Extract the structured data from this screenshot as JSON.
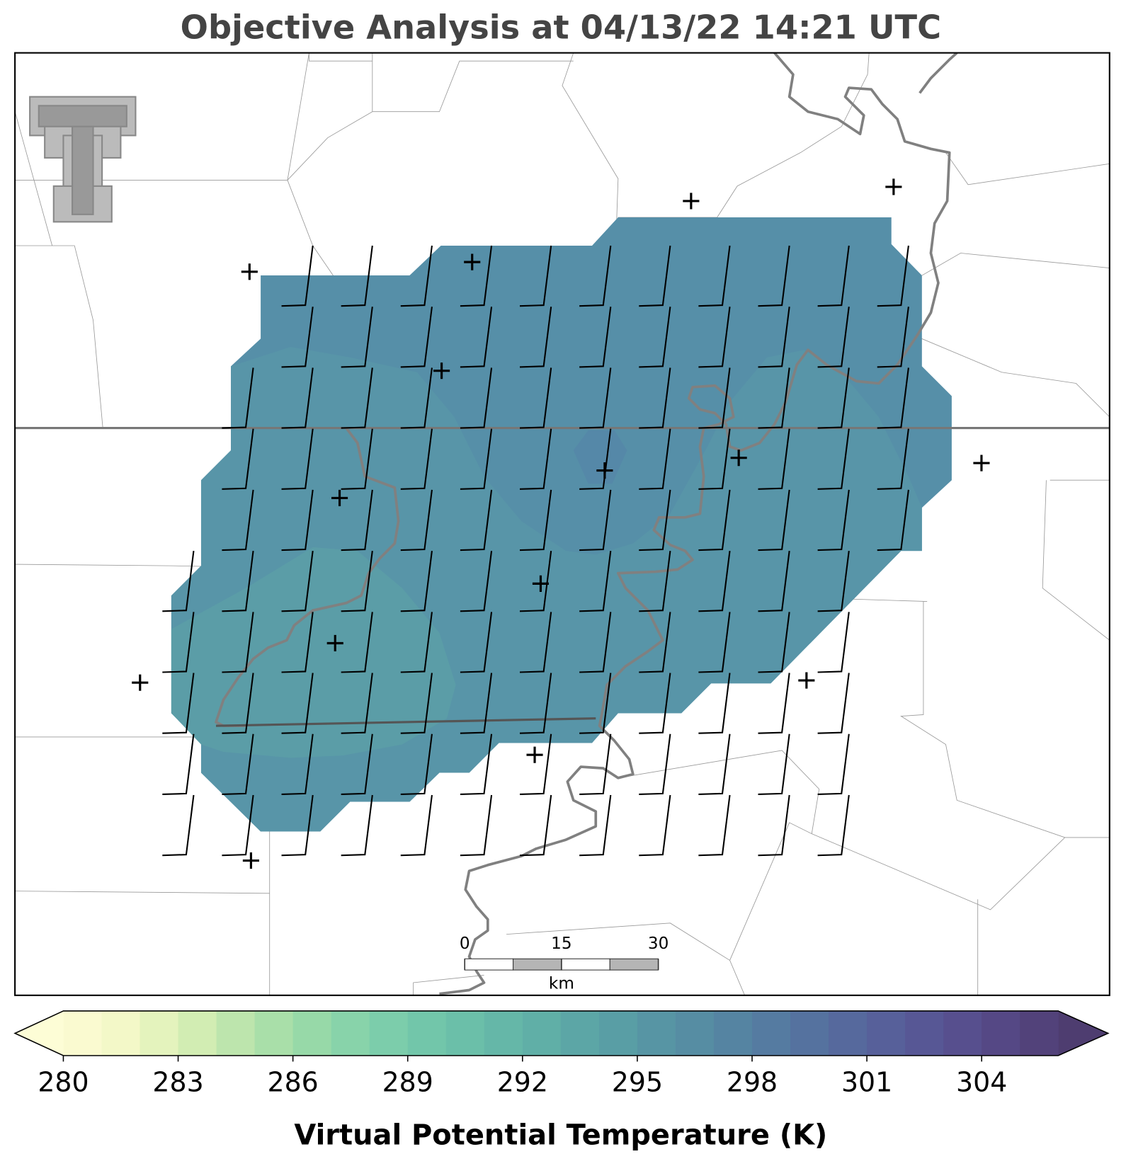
{
  "title": "Objective Analysis at 04/13/22 14:21 UTC",
  "colorbar": {
    "label": "Virtual Potential Temperature (K)",
    "range": [
      280,
      306
    ],
    "ticks": [
      280,
      283,
      286,
      289,
      292,
      295,
      298,
      301,
      304
    ],
    "colors": [
      "#fafad0",
      "#f3f8c8",
      "#e4f3bd",
      "#d2edb3",
      "#bde5ad",
      "#a9dfa9",
      "#97d9a8",
      "#88d3aa",
      "#7ccdab",
      "#72c6aa",
      "#6bbfa9",
      "#65b7a8",
      "#60afa7",
      "#5ca6a6",
      "#599ea5",
      "#5795a4",
      "#568da3",
      "#5584a2",
      "#557ba1",
      "#55729f",
      "#56699d",
      "#57609a",
      "#575795",
      "#574f8e",
      "#554885",
      "#52427a"
    ],
    "under_color": "#fdfdd6",
    "over_color": "#4e3d70"
  },
  "scale_bar": {
    "ticks": [
      0,
      15,
      30
    ],
    "unit": "km"
  }
}
